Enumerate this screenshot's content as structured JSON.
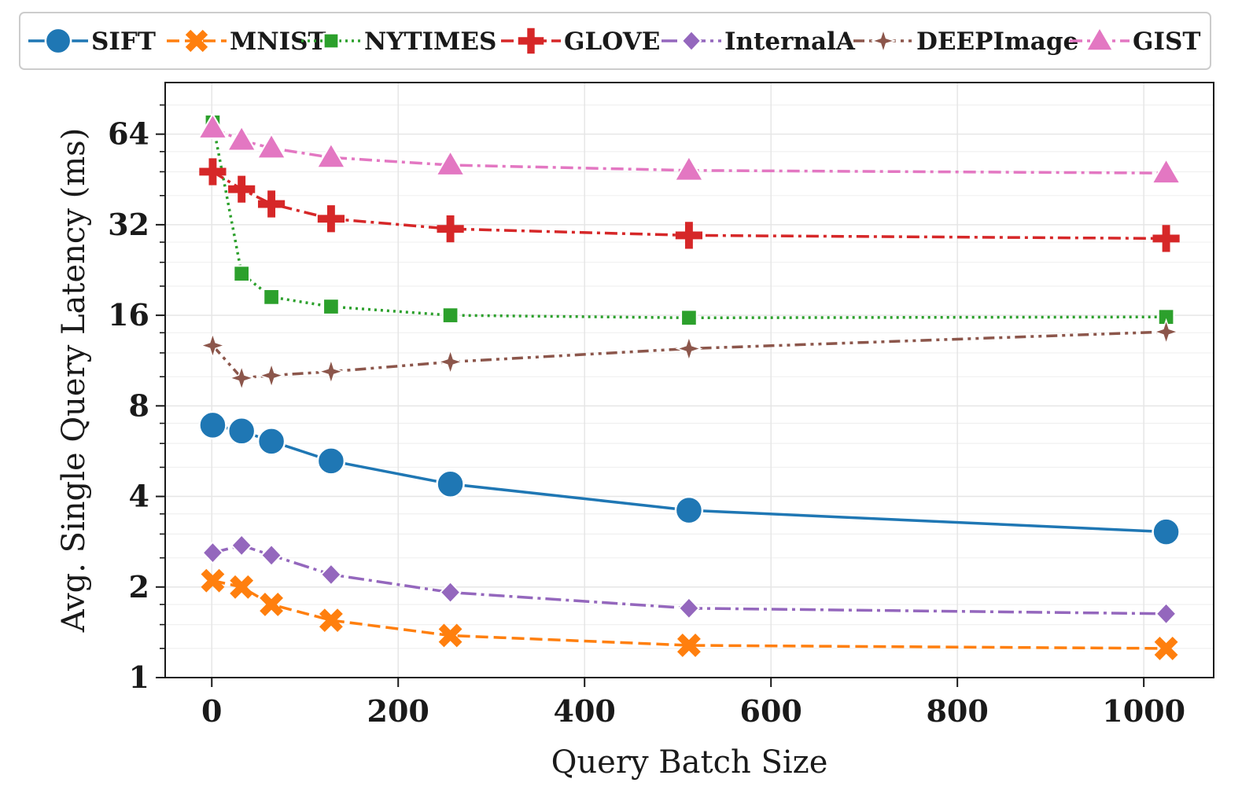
{
  "chart_data": {
    "type": "line",
    "title": "",
    "xlabel": "Query Batch Size",
    "ylabel": "Avg. Single Query Latency (ms)",
    "yscale": "log2",
    "x": [
      1,
      32,
      64,
      128,
      256,
      512,
      1024
    ],
    "xlim": [
      -50,
      1075
    ],
    "ylim": [
      1,
      95
    ],
    "xticks": [
      0,
      200,
      400,
      600,
      800,
      1000
    ],
    "xtick_labels": [
      "0",
      "200",
      "400",
      "600",
      "800",
      "1000"
    ],
    "yticks": [
      1,
      2,
      4,
      8,
      16,
      32,
      64
    ],
    "ytick_labels": [
      "1",
      "2",
      "4",
      "8",
      "16",
      "32",
      "64"
    ],
    "grid": true,
    "legend_position": "top",
    "series": [
      {
        "name": "SIFT",
        "color": "#1f77b4",
        "marker": "circle",
        "dash": "solid",
        "values": [
          6.9,
          6.6,
          6.1,
          5.25,
          4.4,
          3.6,
          3.05
        ]
      },
      {
        "name": "MNIST",
        "color": "#ff7f0e",
        "marker": "x",
        "dash": "dashed",
        "values": [
          2.1,
          2.0,
          1.75,
          1.55,
          1.38,
          1.28,
          1.25
        ]
      },
      {
        "name": "NYTIMES",
        "color": "#2ca02c",
        "marker": "square",
        "dash": "dotted",
        "values": [
          70,
          22,
          18.4,
          17.1,
          16.0,
          15.7,
          15.8
        ]
      },
      {
        "name": "GLOVE",
        "color": "#d62728",
        "marker": "plus",
        "dash": "dashdot",
        "values": [
          48,
          42,
          37.5,
          33.5,
          31.0,
          29.5,
          28.8
        ]
      },
      {
        "name": "InternalA",
        "color": "#9467bd",
        "marker": "diamond",
        "dash": "dashdot2",
        "values": [
          2.6,
          2.75,
          2.55,
          2.2,
          1.92,
          1.7,
          1.63
        ]
      },
      {
        "name": "DEEPImage",
        "color": "#8c564b",
        "marker": "star",
        "dash": "dashdot3",
        "values": [
          12.7,
          9.9,
          10.1,
          10.4,
          11.2,
          12.4,
          14.1
        ]
      },
      {
        "name": "GIST",
        "color": "#e377c2",
        "marker": "triangle",
        "dash": "dashdot",
        "values": [
          67,
          61,
          57.5,
          53.5,
          50.5,
          48.5,
          47.5
        ]
      }
    ]
  }
}
